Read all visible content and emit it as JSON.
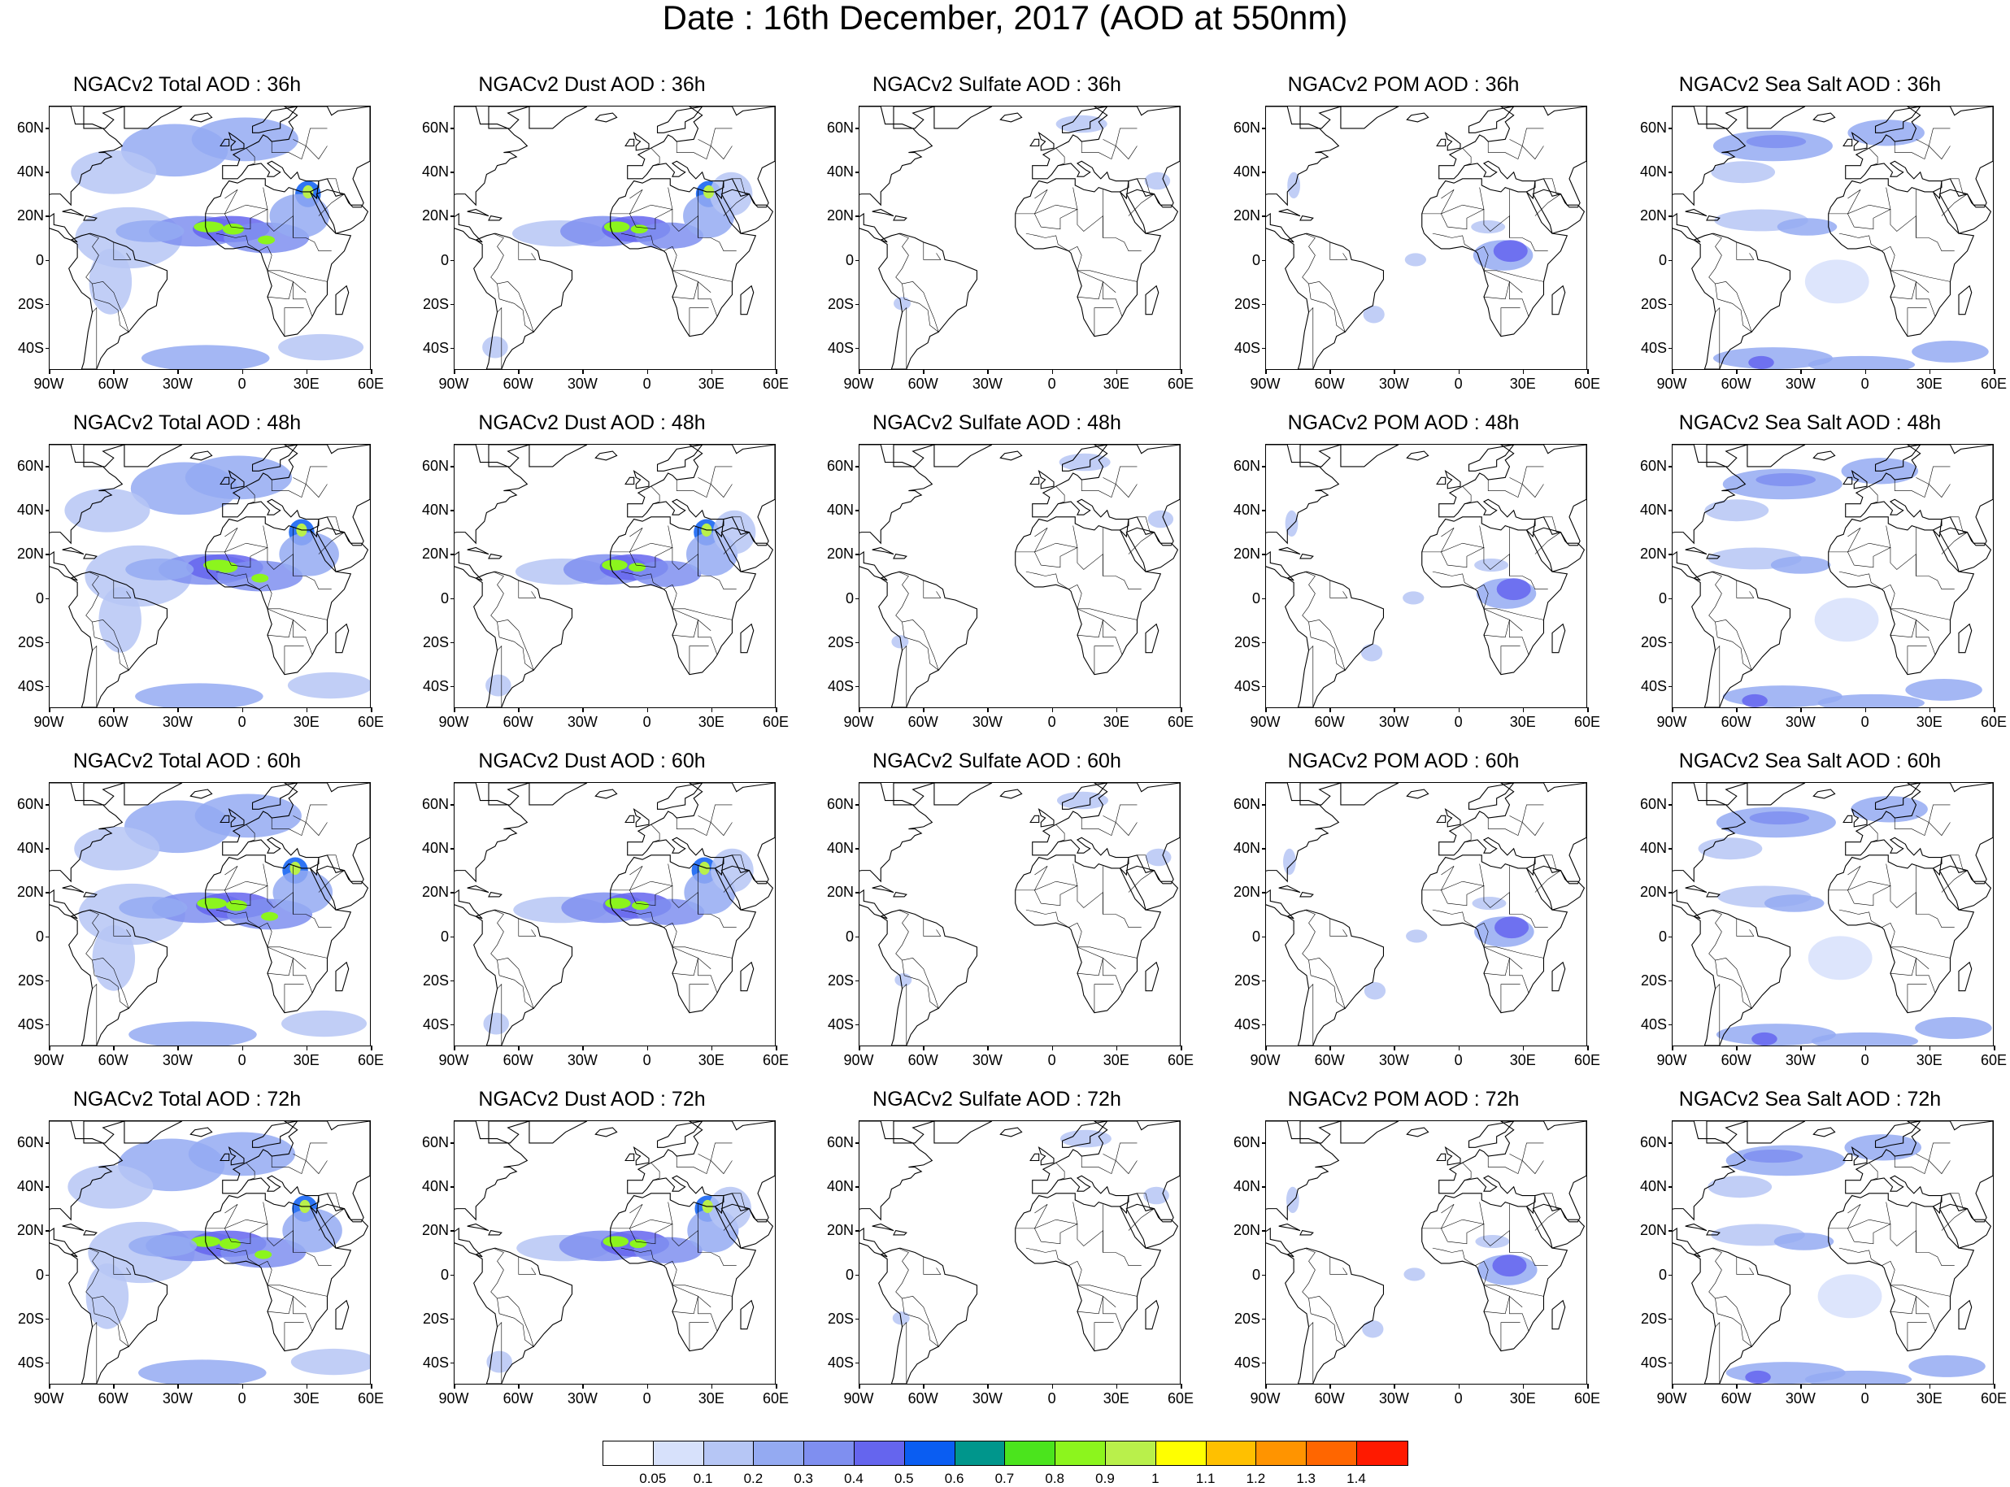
{
  "title": "Date : 16th December, 2017 (AOD at 550nm)",
  "grid": {
    "rows": [
      "36h",
      "48h",
      "60h",
      "72h"
    ],
    "columns": [
      "Total",
      "Dust",
      "Sulfate",
      "POM",
      "Sea Salt"
    ]
  },
  "panels": [
    [
      "NGACv2 Total AOD : 36h",
      "NGACv2 Dust AOD : 36h",
      "NGACv2 Sulfate AOD : 36h",
      "NGACv2 POM AOD : 36h",
      "NGACv2 Sea Salt AOD : 36h"
    ],
    [
      "NGACv2 Total AOD : 48h",
      "NGACv2 Dust AOD : 48h",
      "NGACv2 Sulfate AOD : 48h",
      "NGACv2 POM AOD : 48h",
      "NGACv2 Sea Salt AOD : 48h"
    ],
    [
      "NGACv2 Total AOD : 60h",
      "NGACv2 Dust AOD : 60h",
      "NGACv2 Sulfate AOD : 60h",
      "NGACv2 POM AOD : 60h",
      "NGACv2 Sea Salt AOD : 60h"
    ],
    [
      "NGACv2 Total AOD : 72h",
      "NGACv2 Dust AOD : 72h",
      "NGACv2 Sulfate AOD : 72h",
      "NGACv2 POM AOD : 72h",
      "NGACv2 Sea Salt  AOD : 72h"
    ]
  ],
  "lat_labels": [
    "60N",
    "40N",
    "20N",
    "0",
    "20S",
    "40S"
  ],
  "lat_values": [
    60,
    40,
    20,
    0,
    -20,
    -40
  ],
  "lon_labels": [
    "90W",
    "60W",
    "30W",
    "0",
    "30E",
    "60E"
  ],
  "lon_values": [
    -90,
    -60,
    -30,
    0,
    30,
    60
  ],
  "map_extent": {
    "lon": [
      -90,
      60
    ],
    "lat": [
      -50,
      70
    ]
  },
  "colorbar": {
    "labels": [
      "0.05",
      "0.1",
      "0.2",
      "0.3",
      "0.4",
      "0.5",
      "0.6",
      "0.7",
      "0.8",
      "0.9",
      "1",
      "1.1",
      "1.2",
      "1.3",
      "1.4"
    ],
    "colors": [
      "#ffffff",
      "#d7e1fb",
      "#b6c6f5",
      "#94aaf2",
      "#7f8ff0",
      "#6565ee",
      "#0a5df2",
      "#00968c",
      "#4be41d",
      "#8cf51d",
      "#b9f04b",
      "#ffff00",
      "#ffc000",
      "#ff9400",
      "#ff6600",
      "#ff1a00"
    ]
  }
}
